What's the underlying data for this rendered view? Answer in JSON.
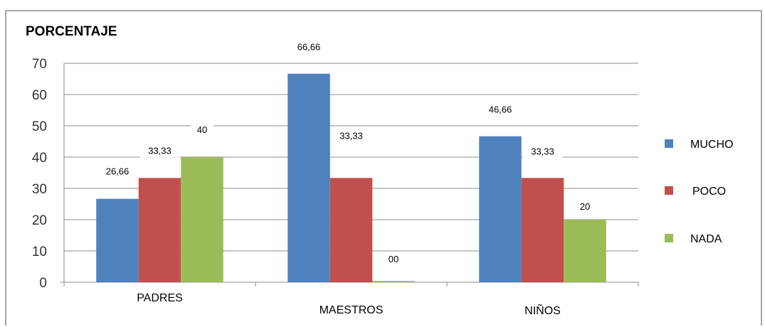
{
  "chart_data": {
    "type": "bar",
    "title": "PORCENTAJE",
    "categories": [
      "PADRES",
      "MAESTROS",
      "NIÑOS"
    ],
    "series": [
      {
        "name": "MUCHO",
        "color": "#4f81bd",
        "values": [
          26.66,
          66.66,
          46.66
        ],
        "labels": [
          "26,66",
          "66,66",
          "46,66"
        ]
      },
      {
        "name": "POCO",
        "color": "#c0504d",
        "values": [
          33.33,
          33.33,
          33.33
        ],
        "labels": [
          "33,33",
          "33,33",
          "33,33"
        ]
      },
      {
        "name": "NADA",
        "color": "#9bbb59",
        "values": [
          40,
          0.4,
          20
        ],
        "labels": [
          "40",
          "00",
          "20"
        ]
      }
    ],
    "yticks": [
      "0",
      "10",
      "20",
      "30",
      "40",
      "50",
      "60",
      "70"
    ],
    "ylim": [
      0,
      70
    ],
    "grid": true,
    "legend_position": "right"
  }
}
